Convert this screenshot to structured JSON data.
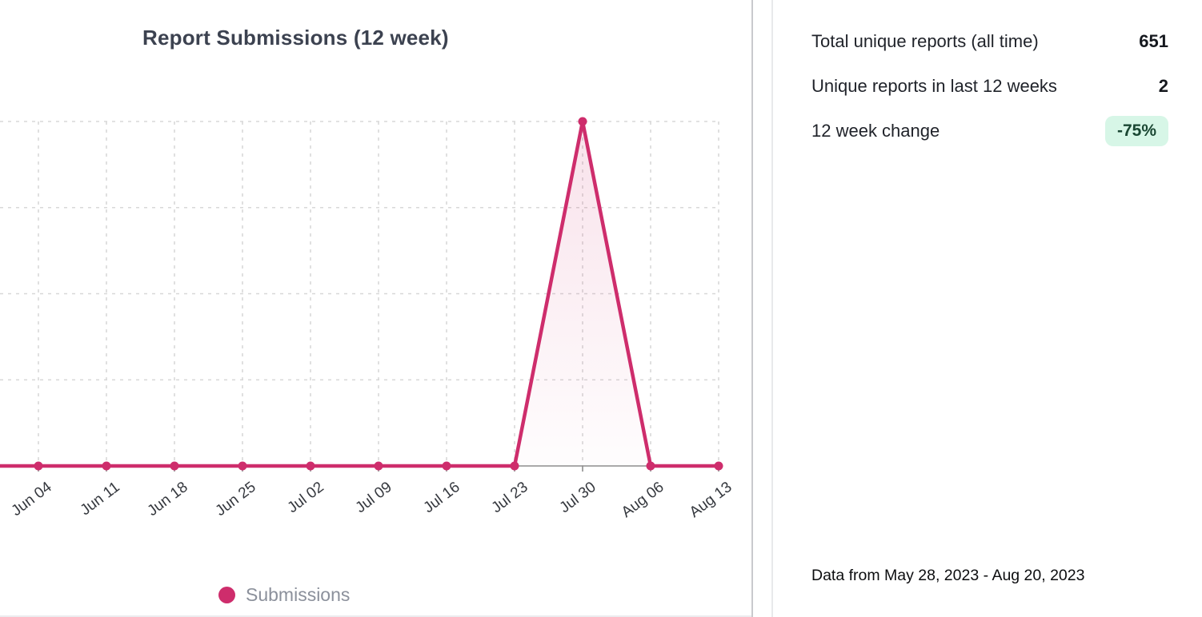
{
  "chart_card": {
    "title": "Report Submissions (12 week)"
  },
  "chart_data": {
    "type": "line",
    "title": "Report Submissions (12 week)",
    "categories": [
      "Jun 04",
      "Jun 11",
      "Jun 18",
      "Jun 25",
      "Jul 02",
      "Jul 09",
      "Jul 16",
      "Jul 23",
      "Jul 30",
      "Aug 06",
      "Aug 13"
    ],
    "series": [
      {
        "name": "Submissions",
        "color": "#ce2d6c",
        "values": [
          0,
          0,
          0,
          0,
          0,
          0,
          0,
          0,
          2,
          0,
          0
        ]
      }
    ],
    "ylim": [
      0,
      2
    ],
    "grid": true,
    "grid_style": "dashed",
    "area_fill": true,
    "point_markers": true,
    "legend_position": "bottom",
    "x_label_rotation": -37
  },
  "stats_panel": {
    "rows": [
      {
        "label": "Total unique reports (all time)",
        "value": "651"
      },
      {
        "label": "Unique reports in last 12 weeks",
        "value": "2"
      },
      {
        "label": "12 week change",
        "value": "-75%",
        "badge": true
      }
    ],
    "footnote": "Data from May 28, 2023 - Aug 20, 2023"
  },
  "colors": {
    "accent_pink": "#ce2d6c",
    "grid": "#d8d8d8",
    "axis": "#8e8e8e",
    "title": "#3c4250",
    "badge_bg": "#d7f6e7",
    "badge_text": "#1a4733",
    "legend_text": "#8b909b"
  }
}
